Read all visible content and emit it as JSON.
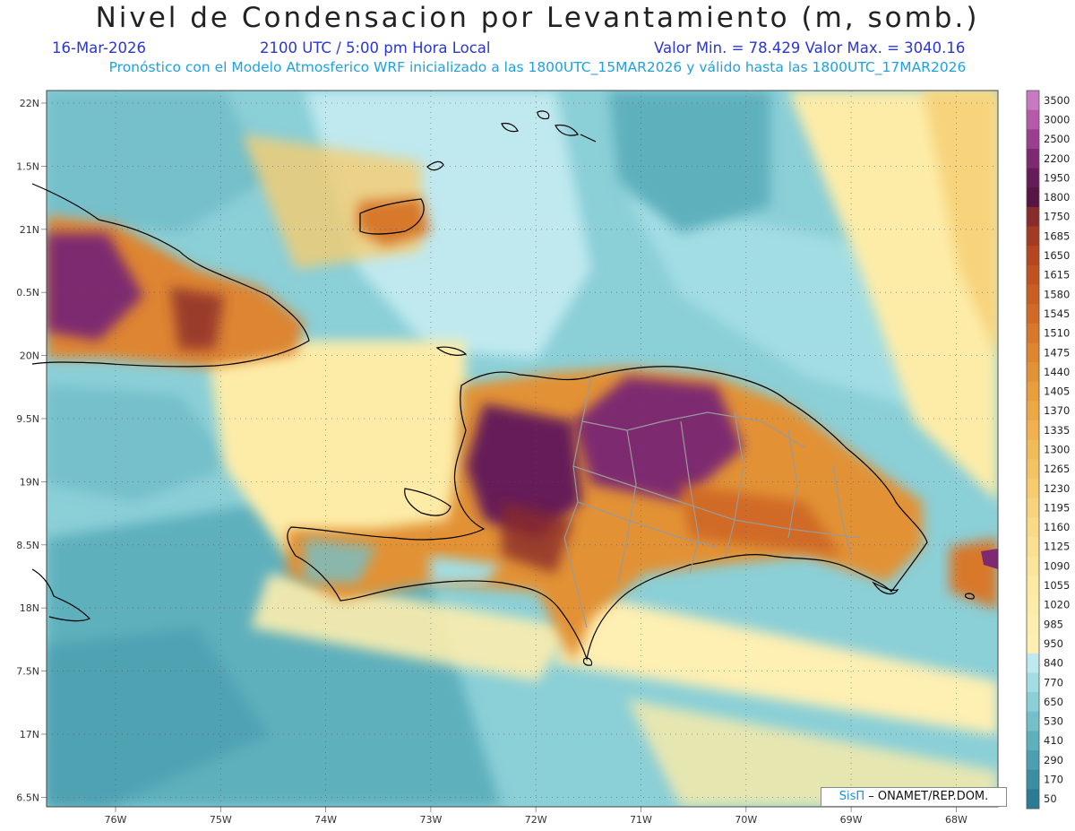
{
  "header": {
    "title": "Nivel de Condensacion por Levantamiento (m, somb.)",
    "date": "16-Mar-2026",
    "time": "2100 UTC / 5:00 pm Hora Local",
    "minmax": "Valor Min. = 78.429   Valor Max. = 3040.16",
    "model_info": "Pronóstico con el Modelo Atmosferico WRF inicializado a las 1800UTC_15MAR2026 y válido hasta las  1800UTC_17MAR2026"
  },
  "axes": {
    "lon_labels": [
      "76W",
      "75W",
      "74W",
      "73W",
      "72W",
      "71W",
      "70W",
      "69W",
      "68W"
    ],
    "lat_labels": [
      "22N",
      "1.5N",
      "21N",
      "0.5N",
      "20N",
      "9.5N",
      "19N",
      "8.5N",
      "18N",
      "7.5N",
      "17N",
      "6.5N"
    ]
  },
  "colorbar": {
    "levels": [
      "3500",
      "3000",
      "2500",
      "2200",
      "1950",
      "1800",
      "1750",
      "1685",
      "1650",
      "1615",
      "1580",
      "1545",
      "1510",
      "1475",
      "1440",
      "1405",
      "1370",
      "1335",
      "1300",
      "1265",
      "1230",
      "1195",
      "1160",
      "1125",
      "1090",
      "1055",
      "1020",
      "985",
      "950",
      "840",
      "770",
      "650",
      "530",
      "410",
      "290",
      "170",
      "50"
    ],
    "colors": [
      "#c77ac2",
      "#b45aa8",
      "#9a3f8e",
      "#7e2a70",
      "#661c58",
      "#561544",
      "#8a2b2b",
      "#a33a22",
      "#b5461f",
      "#c0521f",
      "#c95e22",
      "#d06a26",
      "#d7782b",
      "#dd8530",
      "#e29236",
      "#e79e3d",
      "#eba845",
      "#efb24f",
      "#f2bb59",
      "#f4c464",
      "#f6cc6f",
      "#f7d37b",
      "#f9da86",
      "#fae090",
      "#fbe59a",
      "#fce9a2",
      "#fdeca8",
      "#fdeeae",
      "#feefb2",
      "#bfe9ef",
      "#a2dde3",
      "#8bcfd7",
      "#74c0ca",
      "#5fb0bd",
      "#4b9fb0",
      "#3a8ea2",
      "#2b7c93"
    ]
  },
  "credit": {
    "brand": "SisΠ",
    "text": "– ONAMET/REP.DOM."
  }
}
